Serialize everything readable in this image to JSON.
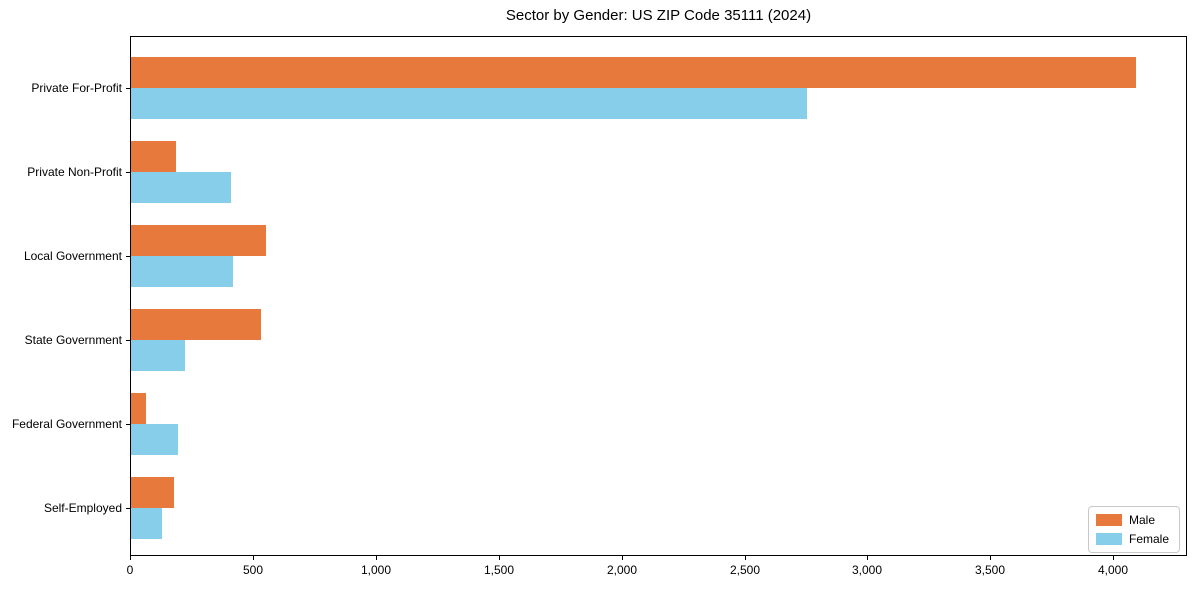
{
  "chart_data": {
    "type": "bar",
    "orientation": "horizontal",
    "title": "Sector by Gender: US ZIP Code 35111 (2024)",
    "categories": [
      "Private For-Profit",
      "Private Non-Profit",
      "Local Government",
      "State Government",
      "Federal Government",
      "Self-Employed"
    ],
    "series": [
      {
        "name": "Male",
        "color": "#e8793d",
        "values": [
          4090,
          185,
          550,
          530,
          60,
          175
        ]
      },
      {
        "name": "Female",
        "color": "#87ceeb",
        "values": [
          2750,
          405,
          415,
          220,
          190,
          125
        ]
      }
    ],
    "xlabel": "",
    "ylabel": "",
    "xlim": [
      0,
      4300
    ],
    "xticks": [
      0,
      500,
      1000,
      1500,
      2000,
      2500,
      3000,
      3500,
      4000
    ],
    "xtick_labels": [
      "0",
      "500",
      "1,000",
      "1,500",
      "2,000",
      "2,500",
      "3,000",
      "3,500",
      "4,000"
    ],
    "grid": false,
    "legend_position": "lower right",
    "background_color": "#ffffff",
    "spine_color": "#000000"
  }
}
